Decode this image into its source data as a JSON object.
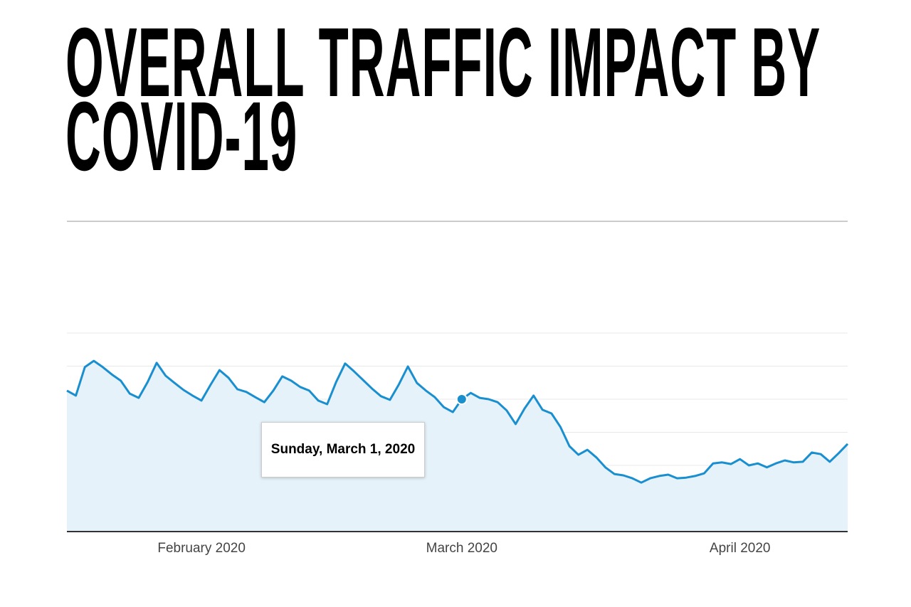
{
  "chart_data": {
    "type": "area",
    "title": "OVERALL TRAFFIC IMPACT BY COVID-19",
    "x": [
      "2020-01-17",
      "2020-01-18",
      "2020-01-19",
      "2020-01-20",
      "2020-01-21",
      "2020-01-22",
      "2020-01-23",
      "2020-01-24",
      "2020-01-25",
      "2020-01-26",
      "2020-01-27",
      "2020-01-28",
      "2020-01-29",
      "2020-01-30",
      "2020-01-31",
      "2020-02-01",
      "2020-02-02",
      "2020-02-03",
      "2020-02-04",
      "2020-02-05",
      "2020-02-06",
      "2020-02-07",
      "2020-02-08",
      "2020-02-09",
      "2020-02-10",
      "2020-02-11",
      "2020-02-12",
      "2020-02-13",
      "2020-02-14",
      "2020-02-15",
      "2020-02-16",
      "2020-02-17",
      "2020-02-18",
      "2020-02-19",
      "2020-02-20",
      "2020-02-21",
      "2020-02-22",
      "2020-02-23",
      "2020-02-24",
      "2020-02-25",
      "2020-02-26",
      "2020-02-27",
      "2020-02-28",
      "2020-02-29",
      "2020-03-01",
      "2020-03-02",
      "2020-03-03",
      "2020-03-04",
      "2020-03-05",
      "2020-03-06",
      "2020-03-07",
      "2020-03-08",
      "2020-03-09",
      "2020-03-10",
      "2020-03-11",
      "2020-03-12",
      "2020-03-13",
      "2020-03-14",
      "2020-03-15",
      "2020-03-16",
      "2020-03-17",
      "2020-03-18",
      "2020-03-19",
      "2020-03-20",
      "2020-03-21",
      "2020-03-22",
      "2020-03-23",
      "2020-03-24",
      "2020-03-25",
      "2020-03-26",
      "2020-03-27",
      "2020-03-28",
      "2020-03-29",
      "2020-03-30",
      "2020-03-31",
      "2020-04-01",
      "2020-04-02",
      "2020-04-03",
      "2020-04-04",
      "2020-04-05",
      "2020-04-06",
      "2020-04-07",
      "2020-04-08",
      "2020-04-09",
      "2020-04-10",
      "2020-04-11",
      "2020-04-12",
      "2020-04-13"
    ],
    "values": [
      4.26,
      4.11,
      4.97,
      5.16,
      4.97,
      4.75,
      4.56,
      4.17,
      4.04,
      4.52,
      5.1,
      4.71,
      4.49,
      4.28,
      4.11,
      3.96,
      4.43,
      4.88,
      4.65,
      4.3,
      4.22,
      4.06,
      3.91,
      4.26,
      4.69,
      4.56,
      4.37,
      4.26,
      3.96,
      3.85,
      4.52,
      5.08,
      4.84,
      4.58,
      4.32,
      4.09,
      3.98,
      4.45,
      4.99,
      4.49,
      4.26,
      4.06,
      3.76,
      3.61,
      4.0,
      4.19,
      4.04,
      4.0,
      3.91,
      3.66,
      3.25,
      3.72,
      4.11,
      3.68,
      3.57,
      3.16,
      2.58,
      2.32,
      2.47,
      2.24,
      1.94,
      1.74,
      1.7,
      1.61,
      1.48,
      1.61,
      1.68,
      1.72,
      1.61,
      1.63,
      1.68,
      1.76,
      2.06,
      2.09,
      2.04,
      2.19,
      2.0,
      2.06,
      1.94,
      2.06,
      2.15,
      2.09,
      2.11,
      2.39,
      2.34,
      2.11,
      2.37,
      2.65
    ],
    "color": "#1a8fd0",
    "fill": "#e5f2f9",
    "xlim": [
      "2020-01-17",
      "2020-04-13"
    ],
    "xticks": [
      {
        "value": "2020-02-01",
        "label": "February 2020"
      },
      {
        "value": "2020-03-01",
        "label": "March 2020"
      },
      {
        "value": "2020-04-01",
        "label": "April 2020"
      }
    ],
    "ylim": [
      0,
      6
    ],
    "yticks": [
      1,
      2,
      3,
      4,
      5,
      6
    ],
    "grid": true,
    "tooltip": {
      "x": "2020-03-01",
      "label": "Sunday, March 1, 2020"
    }
  }
}
